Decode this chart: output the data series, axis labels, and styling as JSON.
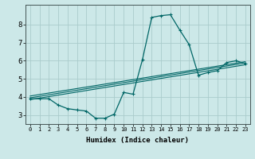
{
  "xlabel": "Humidex (Indice chaleur)",
  "background_color": "#cce8e8",
  "grid_color": "#aacccc",
  "line_color": "#006666",
  "x_ticks": [
    0,
    1,
    2,
    3,
    4,
    5,
    6,
    7,
    8,
    9,
    10,
    11,
    12,
    13,
    14,
    15,
    16,
    17,
    18,
    19,
    20,
    21,
    22,
    23
  ],
  "y_ticks": [
    3,
    4,
    5,
    6,
    7,
    8
  ],
  "xlim": [
    -0.5,
    23.5
  ],
  "ylim": [
    2.5,
    9.1
  ],
  "curve_x": [
    0,
    1,
    2,
    3,
    4,
    5,
    6,
    7,
    8,
    9,
    10,
    11,
    12,
    13,
    14,
    15,
    16,
    17,
    18,
    19,
    20,
    21,
    22,
    23
  ],
  "curve_y": [
    3.9,
    3.9,
    3.9,
    3.55,
    3.35,
    3.28,
    3.22,
    2.82,
    2.82,
    3.05,
    4.25,
    4.15,
    6.05,
    8.4,
    8.5,
    8.55,
    7.7,
    6.9,
    5.2,
    5.35,
    5.45,
    5.9,
    6.0,
    5.85
  ],
  "trend1_x": [
    0,
    23
  ],
  "trend1_y": [
    3.95,
    5.88
  ],
  "trend2_x": [
    0,
    23
  ],
  "trend2_y": [
    4.05,
    5.95
  ],
  "trend3_x": [
    0,
    23
  ],
  "trend3_y": [
    3.85,
    5.78
  ]
}
